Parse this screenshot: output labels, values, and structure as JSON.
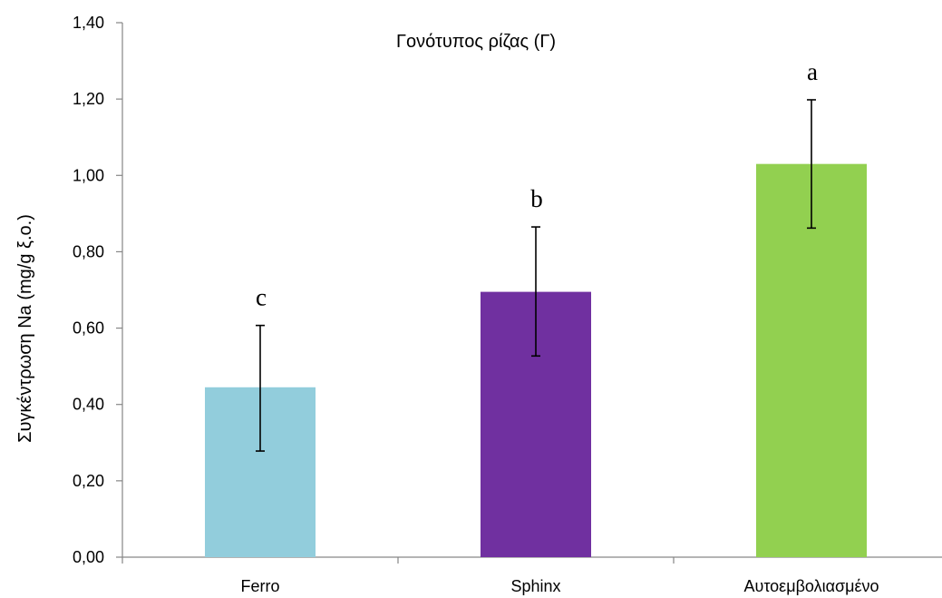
{
  "chart_data": {
    "type": "bar",
    "title": "Γονότυπος ρίζας (Γ)",
    "xlabel": "",
    "ylabel": "Συγκέντρωση Na (mg/g ξ.ο.)",
    "ylim": [
      0,
      1.4
    ],
    "yticks": [
      0,
      0.2,
      0.4,
      0.6,
      0.8,
      1.0,
      1.2,
      1.4
    ],
    "ytick_labels": [
      "0,00",
      "0,20",
      "0,40",
      "0,60",
      "0,80",
      "1,00",
      "1,20",
      "1,40"
    ],
    "categories": [
      "Ferro",
      "Sphinx",
      "Αυτοεμβολιασμένο"
    ],
    "values": [
      0.445,
      0.695,
      1.03
    ],
    "error_low": [
      0.278,
      0.527,
      0.862
    ],
    "error_high": [
      0.607,
      0.865,
      1.198
    ],
    "significance_letters": [
      "c",
      "b",
      "a"
    ],
    "colors": [
      "#92CDDC",
      "#7030A0",
      "#92D050"
    ],
    "grid": false,
    "legend": "none"
  }
}
